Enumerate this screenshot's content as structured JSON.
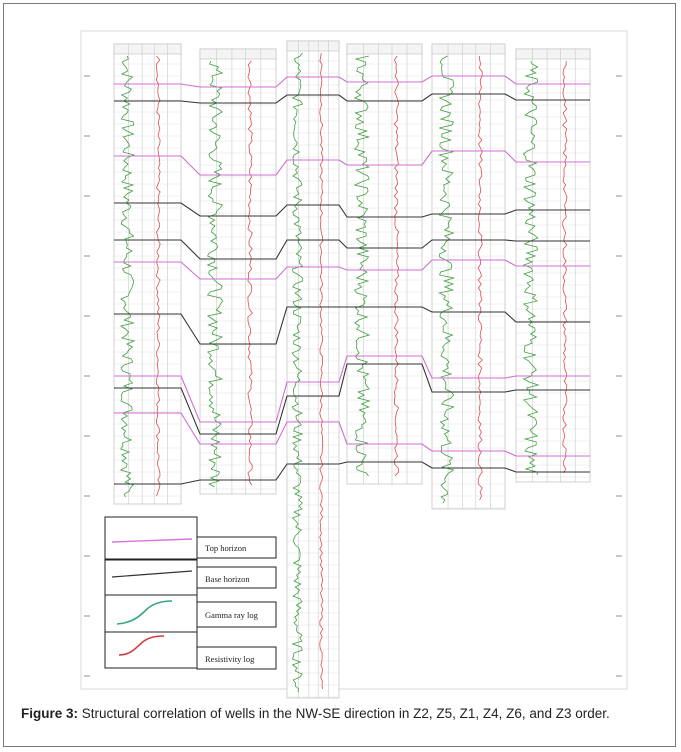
{
  "figure": {
    "caption_label": "Figure 3:",
    "caption_text": " Structural correlation of wells in the NW-SE direction in Z2, Z5, Z1, Z4, Z6, and Z3 order."
  },
  "legend": {
    "items": [
      {
        "label": "Top horizon",
        "color": "#d874d8",
        "kind": "flat"
      },
      {
        "label": "Base horizon",
        "color": "#333333",
        "kind": "flat"
      },
      {
        "label": "Gamma ray log",
        "color": "#3aa57a",
        "kind": "curve"
      },
      {
        "label": "Resistivity log",
        "color": "#d43a3a",
        "kind": "curve"
      }
    ]
  },
  "colors": {
    "gamma": "#3f9f3f",
    "resistivity": "#e04a4a",
    "top_horizon": "#d06cd0",
    "base_horizon": "#333333",
    "grid": "#d8d8d8"
  }
}
